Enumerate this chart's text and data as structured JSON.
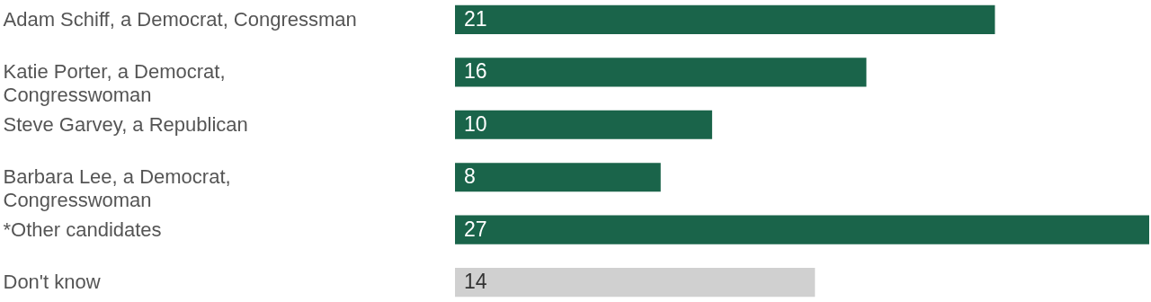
{
  "chart_data": {
    "type": "bar",
    "orientation": "horizontal",
    "categories": [
      "Adam Schiff, a Democrat, Congressman",
      "Katie Porter, a Democrat, Congresswoman",
      "Steve Garvey, a Republican",
      "Barbara Lee, a Democrat, Congresswoman",
      "*Other candidates",
      "Don't know"
    ],
    "values": [
      21,
      16,
      10,
      8,
      27,
      14
    ],
    "colors": [
      "#1a644a",
      "#1a644a",
      "#1a644a",
      "#1a644a",
      "#1a644a",
      "#d0d0d0"
    ],
    "data_labels": true
  }
}
